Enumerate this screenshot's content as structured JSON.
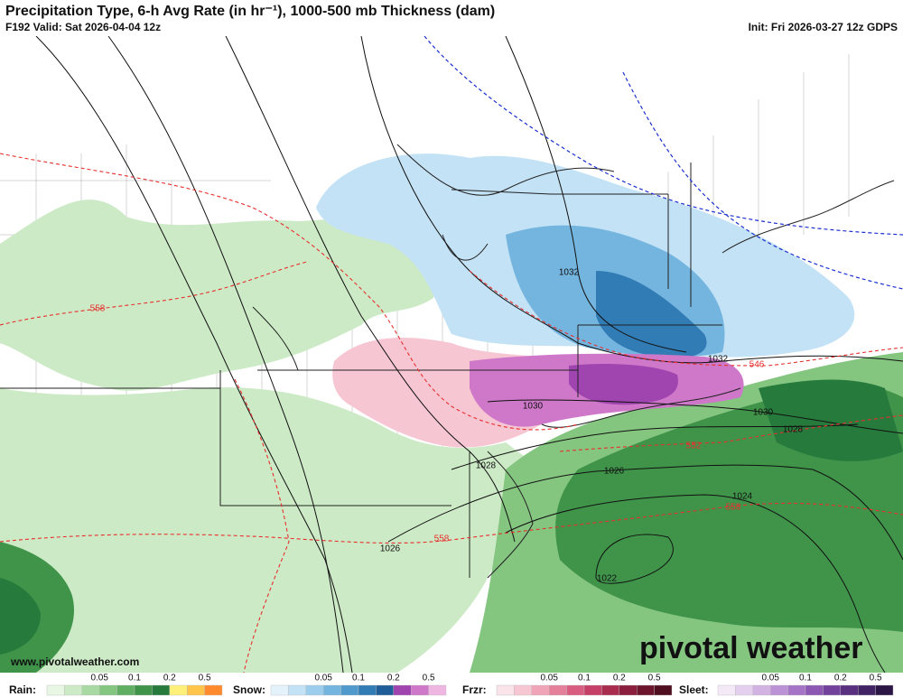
{
  "header": {
    "title": "Precipitation Type, 6-h Avg Rate (in hr⁻¹), 1000-500 mb Thickness (dam)",
    "valid": "F192 Valid: Sat 2026-04-04 12z",
    "init": "Init: Fri 2026-03-27 12z GDPS"
  },
  "map": {
    "pressure_labels": [
      "1032",
      "1030",
      "1028",
      "1026",
      "1032",
      "1030",
      "1028",
      "1026",
      "1024",
      "1022"
    ],
    "thickness_labels": [
      "558",
      "546",
      "552",
      "558",
      "558"
    ],
    "watermark": "pivotal weather",
    "url": "www.pivotalweather.com"
  },
  "legend": [
    {
      "name": "Rain:",
      "ticks": [
        "0.05",
        "0.1",
        "0.2",
        "0.5"
      ],
      "colors": [
        "#e8f6e4",
        "#cdeac6",
        "#a8d9a2",
        "#84c580",
        "#5fae62",
        "#3f944a",
        "#267a3c",
        "#fff07a",
        "#ffc44a",
        "#ff8a2e"
      ]
    },
    {
      "name": "Snow:",
      "ticks": [
        "0.05",
        "0.1",
        "0.2",
        "0.5"
      ],
      "colors": [
        "#e4f2fb",
        "#c3e2f5",
        "#9dcdec",
        "#74b5df",
        "#4f99cd",
        "#327cb5",
        "#1e5d97",
        "#a045b0",
        "#cf78c9",
        "#efb6e2"
      ]
    },
    {
      "name": "Frzr:",
      "ticks": [
        "0.05",
        "0.1",
        "0.2",
        "0.5"
      ],
      "colors": [
        "#fbe3ea",
        "#f6c6d3",
        "#efa4b8",
        "#e5809b",
        "#d95d80",
        "#c63f66",
        "#a92b4e",
        "#8a1e3c",
        "#6c152d",
        "#4f0f21"
      ]
    },
    {
      "name": "Sleet:",
      "ticks": [
        "0.05",
        "0.1",
        "0.2",
        "0.5"
      ],
      "colors": [
        "#f3e9f7",
        "#e4d0ee",
        "#d1b2e3",
        "#bc92d6",
        "#a574c7",
        "#8c58b4",
        "#72419b",
        "#59307f",
        "#412262",
        "#2c1645"
      ]
    }
  ]
}
